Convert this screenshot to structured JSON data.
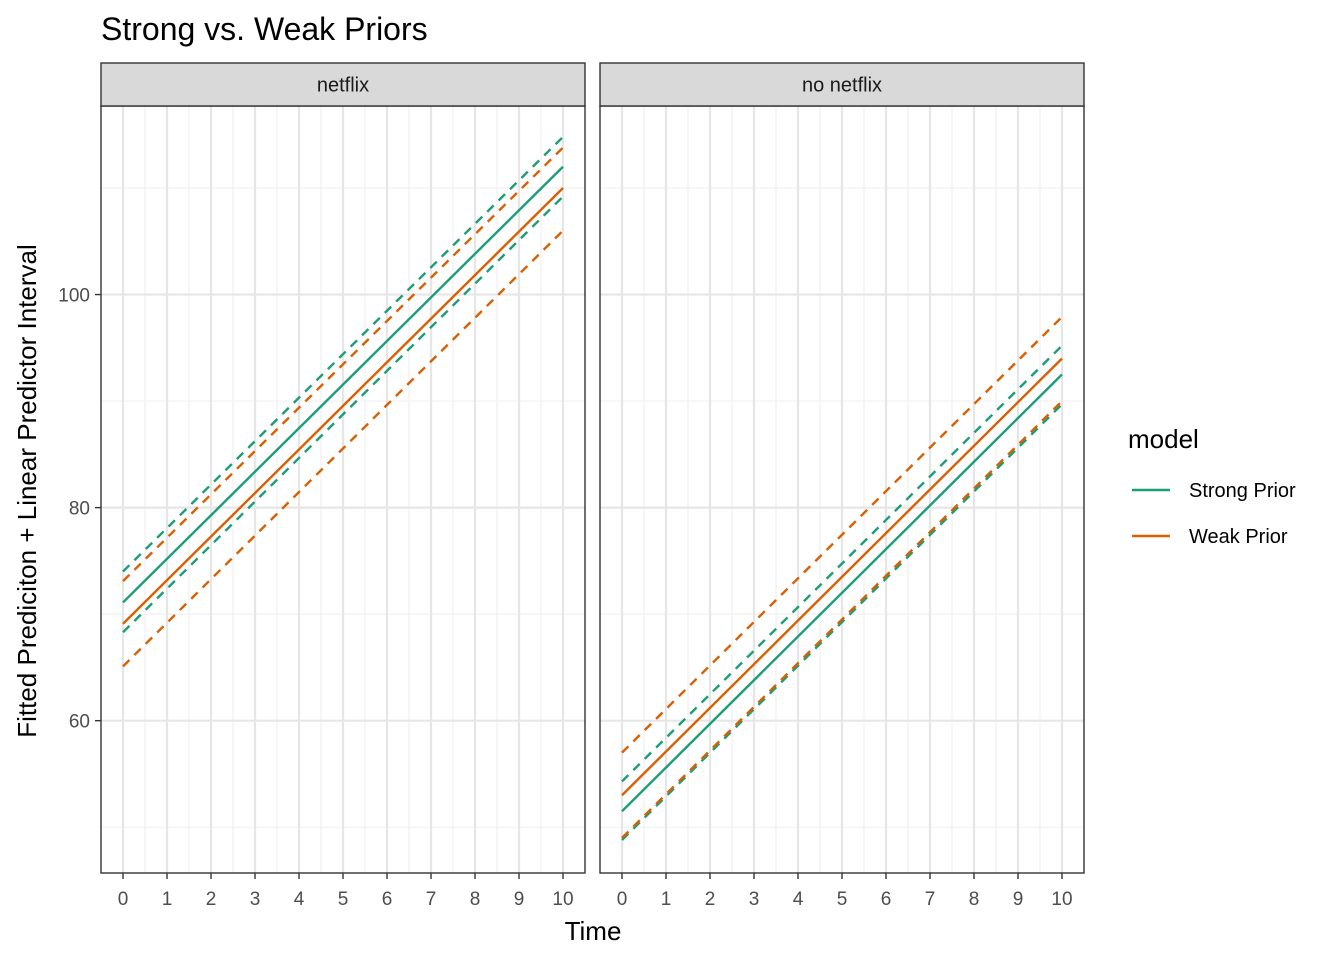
{
  "chart_data": {
    "type": "line",
    "title": "Strong vs. Weak Priors",
    "xlabel": "Time",
    "ylabel": "Fitted Prediciton + Linear Predictor Interval",
    "xlim": [
      -0.5,
      10.5
    ],
    "ylim": [
      45.7,
      117.7
    ],
    "x_ticks": [
      0,
      1,
      2,
      3,
      4,
      5,
      6,
      7,
      8,
      9,
      10
    ],
    "y_ticks": [
      60,
      80,
      100
    ],
    "grid": true,
    "legend": {
      "title": "model",
      "placement": "right",
      "entries": [
        {
          "name": "Strong Prior",
          "color": "#1b9e77"
        },
        {
          "name": "Weak Prior",
          "color": "#d95f02"
        }
      ]
    },
    "panels": [
      {
        "label": "netflix",
        "series": [
          {
            "name": "Strong Prior",
            "kind": "fit",
            "style": "solid",
            "x": [
              0,
              10
            ],
            "values": [
              71.1,
              112.0
            ]
          },
          {
            "name": "Strong Prior",
            "kind": "upper",
            "style": "dashed",
            "x": [
              0,
              10
            ],
            "values": [
              74.0,
              114.8
            ]
          },
          {
            "name": "Strong Prior",
            "kind": "lower",
            "style": "dashed",
            "x": [
              0,
              10
            ],
            "values": [
              68.3,
              109.2
            ]
          },
          {
            "name": "Weak Prior",
            "kind": "fit",
            "style": "solid",
            "x": [
              0,
              10
            ],
            "values": [
              69.1,
              110.0
            ]
          },
          {
            "name": "Weak Prior",
            "kind": "upper",
            "style": "dashed",
            "x": [
              0,
              10
            ],
            "values": [
              73.1,
              113.8
            ]
          },
          {
            "name": "Weak Prior",
            "kind": "lower",
            "style": "dashed",
            "x": [
              0,
              10
            ],
            "values": [
              65.1,
              106.0
            ]
          }
        ]
      },
      {
        "label": "no netflix",
        "series": [
          {
            "name": "Strong Prior",
            "kind": "fit",
            "style": "solid",
            "x": [
              0,
              10
            ],
            "values": [
              51.5,
              92.5
            ]
          },
          {
            "name": "Strong Prior",
            "kind": "upper",
            "style": "dashed",
            "x": [
              0,
              10
            ],
            "values": [
              54.3,
              95.2
            ]
          },
          {
            "name": "Strong Prior",
            "kind": "lower",
            "style": "dashed",
            "x": [
              0,
              10
            ],
            "values": [
              48.8,
              89.7
            ]
          },
          {
            "name": "Weak Prior",
            "kind": "fit",
            "style": "solid",
            "x": [
              0,
              10
            ],
            "values": [
              53.0,
              94.0
            ]
          },
          {
            "name": "Weak Prior",
            "kind": "upper",
            "style": "dashed",
            "x": [
              0,
              10
            ],
            "values": [
              57.0,
              97.9
            ]
          },
          {
            "name": "Weak Prior",
            "kind": "lower",
            "style": "dashed",
            "x": [
              0,
              10
            ],
            "values": [
              49.0,
              90.0
            ]
          }
        ]
      }
    ]
  }
}
